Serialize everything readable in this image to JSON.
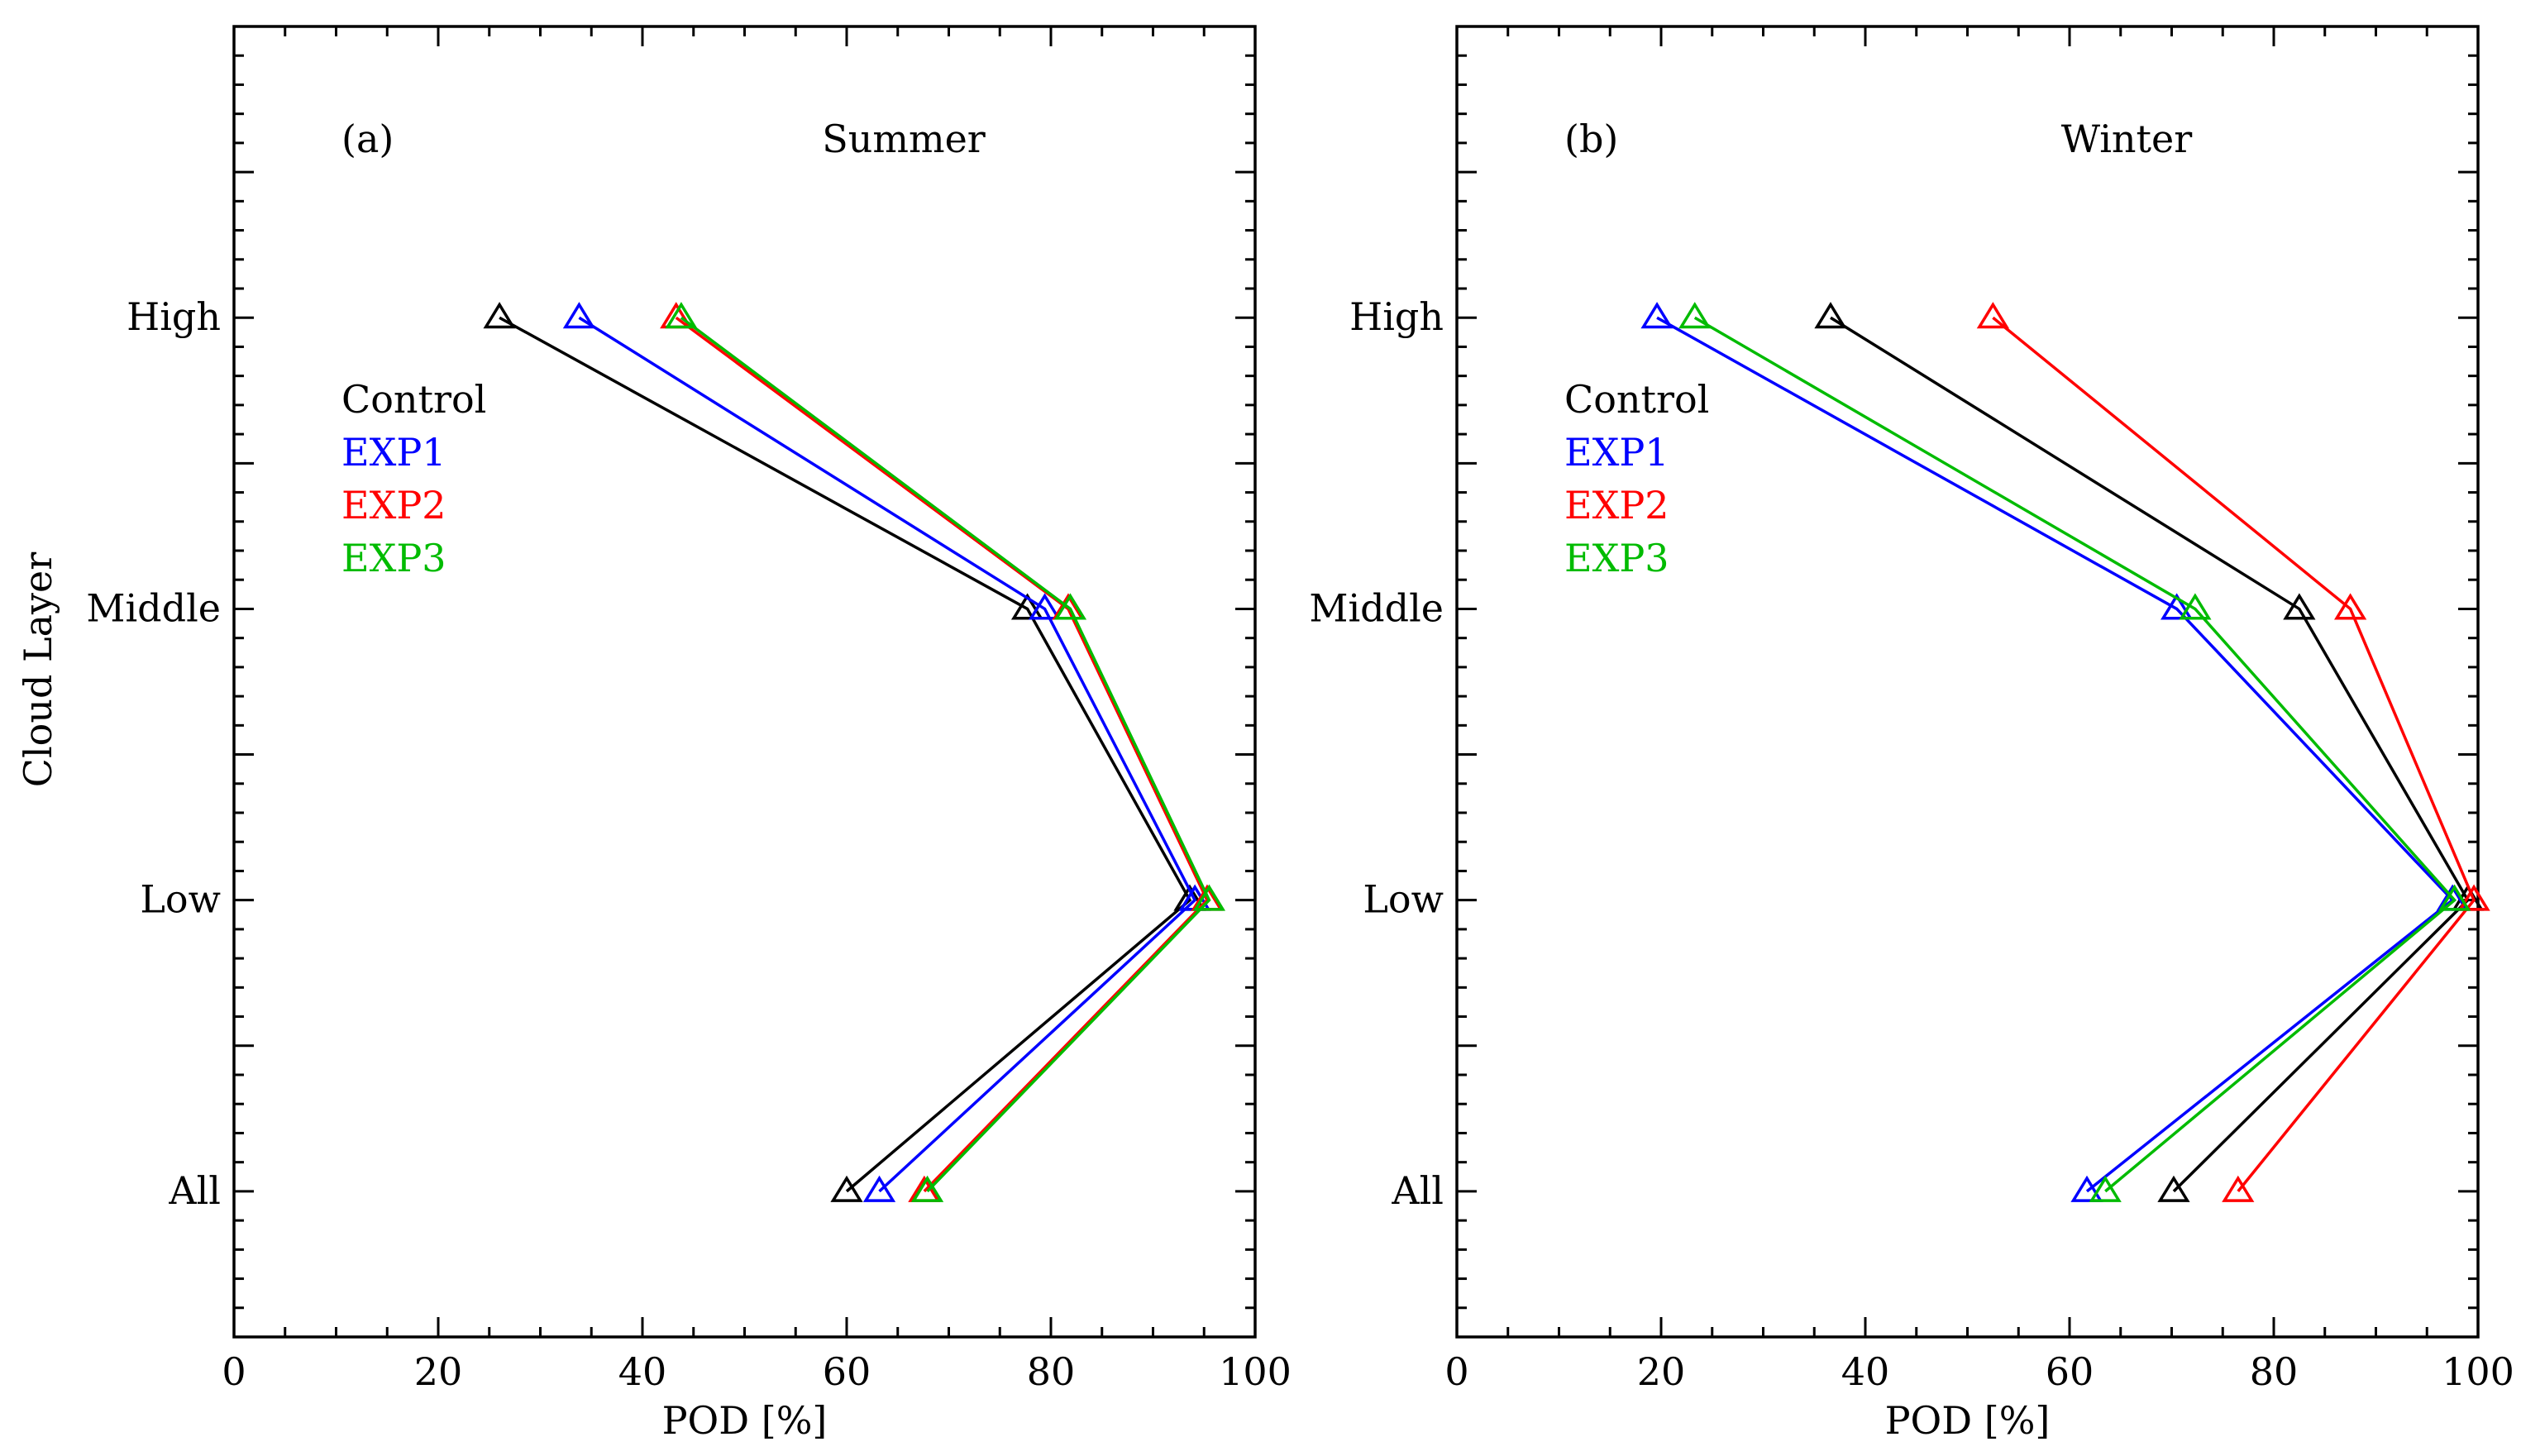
{
  "figure": {
    "ylabel": "Cloud Layer"
  },
  "chart_data": [
    {
      "type": "line",
      "panel_tag": "(a)",
      "title": "Summer",
      "xlabel": "POD [%]",
      "ylabel": "Cloud Layer",
      "xlim": [
        0,
        100
      ],
      "x_ticks": [
        0,
        20,
        40,
        60,
        80,
        100
      ],
      "categories": [
        "High",
        "Middle",
        "Low",
        "All"
      ],
      "legend_position": "left",
      "series": [
        {
          "name": "Control",
          "color": "#000000",
          "values": [
            26,
            77.7,
            93.6,
            60
          ]
        },
        {
          "name": "EXP1",
          "color": "#0000ff",
          "values": [
            33.8,
            79.4,
            94.1,
            63.2
          ]
        },
        {
          "name": "EXP2",
          "color": "#ff0000",
          "values": [
            43.3,
            81.7,
            95.3,
            67.6
          ]
        },
        {
          "name": "EXP3",
          "color": "#00bb00",
          "values": [
            43.8,
            81.9,
            95.5,
            67.9
          ]
        }
      ]
    },
    {
      "type": "line",
      "panel_tag": "(b)",
      "title": "Winter",
      "xlabel": "POD [%]",
      "ylabel": "",
      "xlim": [
        0,
        100
      ],
      "x_ticks": [
        0,
        20,
        40,
        60,
        80,
        100
      ],
      "categories": [
        "High",
        "Middle",
        "Low",
        "All"
      ],
      "legend_position": "left",
      "series": [
        {
          "name": "Control",
          "color": "#000000",
          "values": [
            36.6,
            82.5,
            99,
            70.2
          ]
        },
        {
          "name": "EXP1",
          "color": "#0000ff",
          "values": [
            19.6,
            70.5,
            97.5,
            61.7
          ]
        },
        {
          "name": "EXP2",
          "color": "#ff0000",
          "values": [
            52.5,
            87.5,
            99.6,
            76.5
          ]
        },
        {
          "name": "EXP3",
          "color": "#00bb00",
          "values": [
            23.3,
            72.3,
            97.7,
            63.5
          ]
        }
      ]
    }
  ]
}
